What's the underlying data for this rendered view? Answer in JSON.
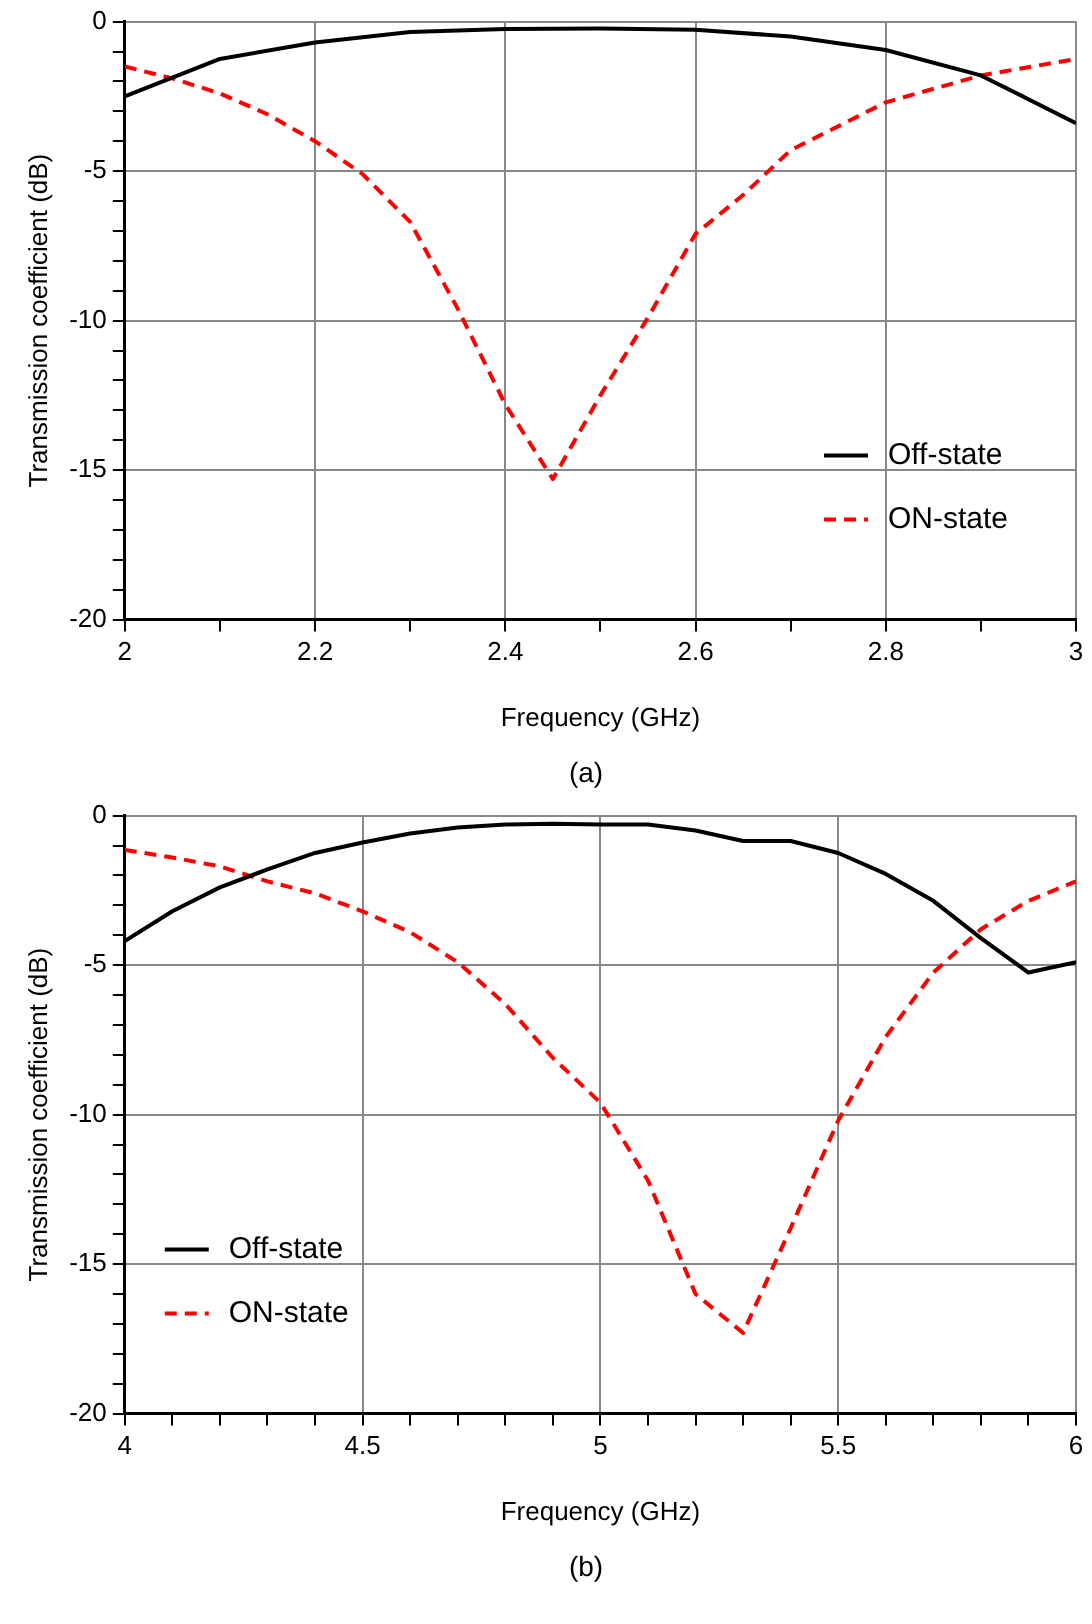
{
  "chart_data": [
    {
      "type": "line",
      "xlabel": "Frequency (GHz)",
      "ylabel": "Transmission coefficient (dB)",
      "xlim": [
        2,
        3
      ],
      "ylim": [
        -20,
        0
      ],
      "xticks": [
        2,
        {
          "value": 2.1,
          "label": null
        },
        2.2,
        {
          "value": 2.3,
          "label": null
        },
        2.4,
        {
          "value": 2.5,
          "label": null
        },
        2.6,
        {
          "value": 2.7,
          "label": null
        },
        2.8,
        {
          "value": 2.9,
          "label": null
        },
        3
      ],
      "yticks": [
        -20,
        {
          "value": -19,
          "label": null
        },
        {
          "value": -18,
          "label": null
        },
        {
          "value": -17,
          "label": null
        },
        {
          "value": -16,
          "label": null
        },
        -15,
        {
          "value": -14,
          "label": null
        },
        {
          "value": -13,
          "label": null
        },
        {
          "value": -12,
          "label": null
        },
        {
          "value": -11,
          "label": null
        },
        -10,
        {
          "value": -9,
          "label": null
        },
        {
          "value": -8,
          "label": null
        },
        {
          "value": -7,
          "label": null
        },
        {
          "value": -6,
          "label": null
        },
        -5,
        {
          "value": -4,
          "label": null
        },
        {
          "value": -3,
          "label": null
        },
        {
          "value": -2,
          "label": null
        },
        {
          "value": -1,
          "label": null
        },
        0
      ],
      "grid": true,
      "legend": "bottom right",
      "marker": "none",
      "series": [
        {
          "name": "Off-state",
          "color": "#000000",
          "line_style": "solid",
          "x": [
            2,
            2.1,
            2.2,
            2.3,
            2.4,
            2.5,
            2.6,
            2.7,
            2.8,
            2.9,
            3
          ],
          "values": [
            -2.5,
            -1.25,
            -0.7,
            -0.35,
            -0.25,
            -0.23,
            -0.27,
            -0.5,
            -0.95,
            -1.8,
            -3.4
          ]
        },
        {
          "name": "ON-state",
          "color": "#ff0000",
          "line_style": "dashed",
          "x": [
            2,
            2.05,
            2.1,
            2.15,
            2.2,
            2.25,
            2.3,
            2.35,
            2.4,
            2.45,
            2.5,
            2.55,
            2.6,
            2.65,
            2.7,
            2.8,
            2.9,
            3
          ],
          "values": [
            -1.5,
            -1.9,
            -2.4,
            -3.1,
            -4,
            -5.1,
            -6.7,
            -9.6,
            -12.8,
            -15.3,
            -12.5,
            -9.9,
            -7.1,
            -5.8,
            -4.3,
            -2.7,
            -1.8,
            -1.25
          ]
        }
      ],
      "annotations": [
        "(a)"
      ]
    },
    {
      "type": "line",
      "xlabel": "Frequency (GHz)",
      "ylabel": "Transmission coefficient (dB)",
      "xlim": [
        4,
        6
      ],
      "ylim": [
        -20,
        0
      ],
      "xticks": [
        4,
        {
          "value": 4.1,
          "label": null
        },
        {
          "value": 4.2,
          "label": null
        },
        {
          "value": 4.3,
          "label": null
        },
        {
          "value": 4.4,
          "label": null
        },
        4.5,
        {
          "value": 4.6,
          "label": null
        },
        {
          "value": 4.7,
          "label": null
        },
        {
          "value": 4.8,
          "label": null
        },
        {
          "value": 4.9,
          "label": null
        },
        5,
        {
          "value": 5.1,
          "label": null
        },
        {
          "value": 5.2,
          "label": null
        },
        {
          "value": 5.3,
          "label": null
        },
        {
          "value": 5.4,
          "label": null
        },
        5.5,
        {
          "value": 5.6,
          "label": null
        },
        {
          "value": 5.7,
          "label": null
        },
        {
          "value": 5.8,
          "label": null
        },
        {
          "value": 5.9,
          "label": null
        },
        6
      ],
      "yticks": [
        -20,
        {
          "value": -19,
          "label": null
        },
        {
          "value": -18,
          "label": null
        },
        {
          "value": -17,
          "label": null
        },
        {
          "value": -16,
          "label": null
        },
        -15,
        {
          "value": -14,
          "label": null
        },
        {
          "value": -13,
          "label": null
        },
        {
          "value": -12,
          "label": null
        },
        {
          "value": -11,
          "label": null
        },
        -10,
        {
          "value": -9,
          "label": null
        },
        {
          "value": -8,
          "label": null
        },
        {
          "value": -7,
          "label": null
        },
        {
          "value": -6,
          "label": null
        },
        -5,
        {
          "value": -4,
          "label": null
        },
        {
          "value": -3,
          "label": null
        },
        {
          "value": -2,
          "label": null
        },
        {
          "value": -1,
          "label": null
        },
        0
      ],
      "grid": true,
      "legend": "bottom left",
      "marker": "none",
      "series": [
        {
          "name": "Off-state",
          "color": "#000000",
          "line_style": "solid",
          "x": [
            4,
            4.1,
            4.2,
            4.3,
            4.4,
            4.5,
            4.6,
            4.7,
            4.8,
            4.9,
            5,
            5.1,
            5.2,
            5.3,
            5.4,
            5.5,
            5.6,
            5.7,
            5.8,
            5.9,
            6
          ],
          "values": [
            -4.2,
            -3.2,
            -2.4,
            -1.8,
            -1.25,
            -0.9,
            -0.6,
            -0.4,
            -0.3,
            -0.27,
            -0.3,
            -0.3,
            -0.5,
            -0.85,
            -0.85,
            -1.25,
            -1.95,
            -2.85,
            -4.1,
            -5.25,
            -4.9
          ]
        },
        {
          "name": "ON-state",
          "color": "#ff0000",
          "line_style": "dashed",
          "x": [
            4,
            4.1,
            4.2,
            4.3,
            4.4,
            4.5,
            4.6,
            4.7,
            4.8,
            4.9,
            5,
            5.1,
            5.2,
            5.3,
            5.4,
            5.5,
            5.6,
            5.7,
            5.8,
            5.9,
            6
          ],
          "values": [
            -1.15,
            -1.4,
            -1.7,
            -2.2,
            -2.6,
            -3.2,
            -3.9,
            -4.9,
            -6.3,
            -8.1,
            -9.6,
            -12.2,
            -16,
            -17.3,
            -13.8,
            -10.2,
            -7.4,
            -5.25,
            -3.8,
            -2.85,
            -2.2
          ]
        }
      ],
      "annotations": [
        "(b)"
      ]
    }
  ]
}
